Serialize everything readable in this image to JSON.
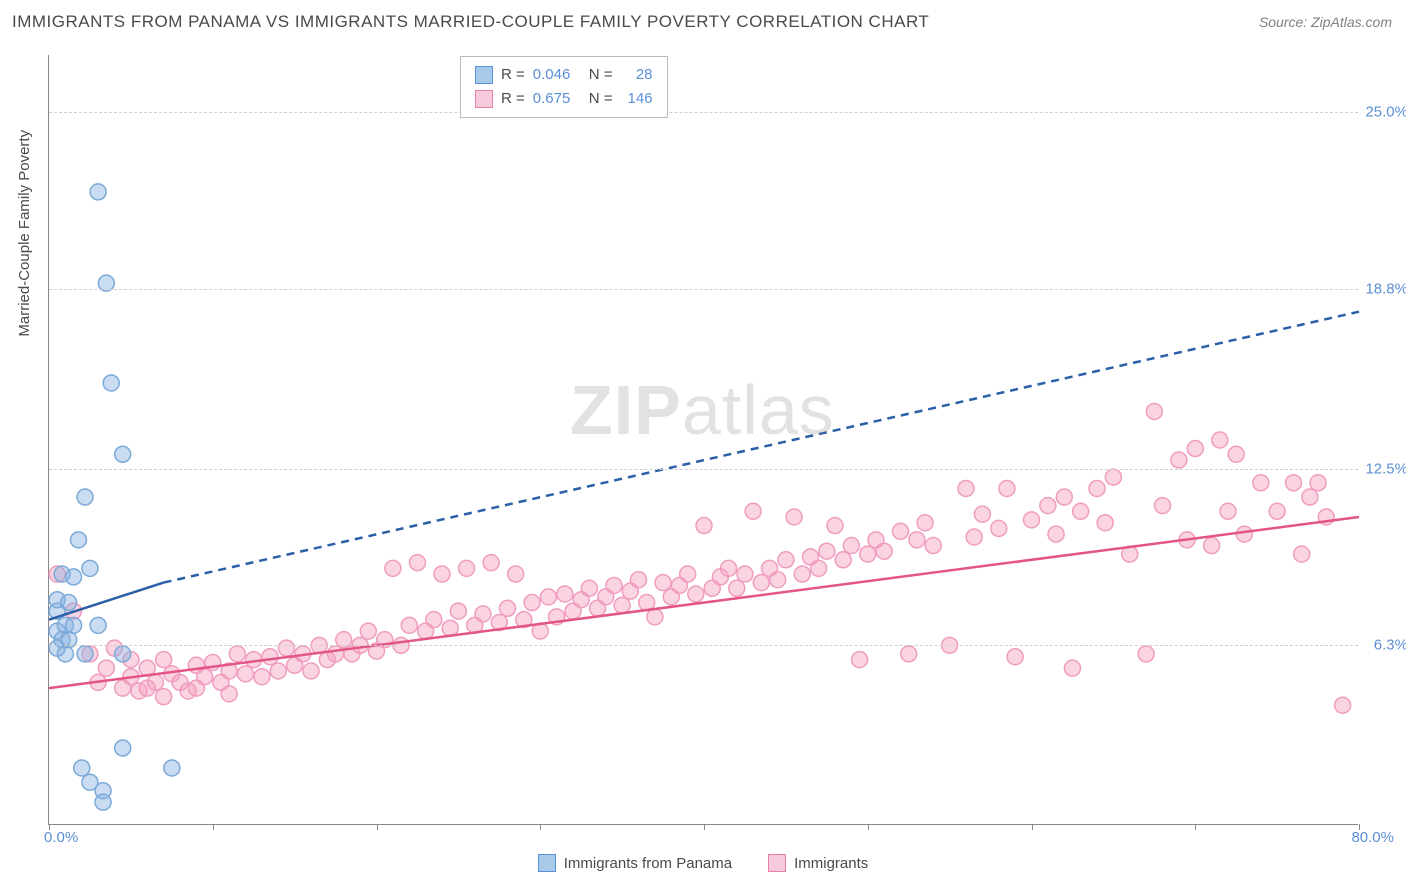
{
  "title": "IMMIGRANTS FROM PANAMA VS IMMIGRANTS MARRIED-COUPLE FAMILY POVERTY CORRELATION CHART",
  "source": "Source: ZipAtlas.com",
  "ylabel": "Married-Couple Family Poverty",
  "watermark_bold": "ZIP",
  "watermark_rest": "atlas",
  "chart": {
    "type": "scatter",
    "xlim": [
      0,
      80
    ],
    "ylim": [
      0,
      27
    ],
    "xlabel_min": "0.0%",
    "xlabel_max": "80.0%",
    "xtick_positions": [
      0,
      10,
      20,
      30,
      40,
      50,
      60,
      70,
      80
    ],
    "ytick_positions": [
      6.3,
      12.5,
      18.8,
      25.0
    ],
    "ytick_labels": [
      "6.3%",
      "12.5%",
      "18.8%",
      "25.0%"
    ],
    "grid_color": "#d0d0d0",
    "background_color": "#ffffff",
    "axis_color": "#888888",
    "tick_label_color": "#5b8fd6",
    "marker_radius": 8,
    "marker_stroke_width": 1.5,
    "series": [
      {
        "name": "Immigrants from Panama",
        "color_fill": "rgba(135,178,226,0.45)",
        "color_stroke": "#7ba9d8",
        "swatch_fill": "#a9c9ea",
        "swatch_border": "#5b8fd6",
        "R": "0.046",
        "N": "28",
        "trend_solid": {
          "x1": 0,
          "y1": 7.2,
          "x2": 7,
          "y2": 8.5
        },
        "trend_dashed": {
          "x1": 7,
          "y1": 8.5,
          "x2": 80,
          "y2": 18.0
        },
        "trend_color": "#2b5fa8",
        "points": [
          [
            0.5,
            7.5
          ],
          [
            0.5,
            6.8
          ],
          [
            0.5,
            6.2
          ],
          [
            0.5,
            7.9
          ],
          [
            0.8,
            6.5
          ],
          [
            0.8,
            8.8
          ],
          [
            1.0,
            6.0
          ],
          [
            1.0,
            7.0
          ],
          [
            1.2,
            6.5
          ],
          [
            1.2,
            7.8
          ],
          [
            1.5,
            7.0
          ],
          [
            1.5,
            8.7
          ],
          [
            1.8,
            10.0
          ],
          [
            2.2,
            6.0
          ],
          [
            2.2,
            11.5
          ],
          [
            2.5,
            9.0
          ],
          [
            3.0,
            22.2
          ],
          [
            3.0,
            7.0
          ],
          [
            3.5,
            19.0
          ],
          [
            3.8,
            15.5
          ],
          [
            4.5,
            6.0
          ],
          [
            4.5,
            13.0
          ],
          [
            2.0,
            2.0
          ],
          [
            2.5,
            1.5
          ],
          [
            3.3,
            1.2
          ],
          [
            3.3,
            0.8
          ],
          [
            4.5,
            2.7
          ],
          [
            7.5,
            2.0
          ]
        ]
      },
      {
        "name": "Immigrants",
        "color_fill": "rgba(244,160,188,0.45)",
        "color_stroke": "#f09cc0",
        "swatch_fill": "#f7c9dc",
        "swatch_border": "#e87fa8",
        "R": "0.675",
        "N": "146",
        "trend_solid": {
          "x1": 0,
          "y1": 4.8,
          "x2": 80,
          "y2": 10.8
        },
        "trend_dashed": null,
        "trend_color": "#e35587",
        "points": [
          [
            0.5,
            8.8
          ],
          [
            1.5,
            7.5
          ],
          [
            2.5,
            6.0
          ],
          [
            3.0,
            5.0
          ],
          [
            3.5,
            5.5
          ],
          [
            4.0,
            6.2
          ],
          [
            4.5,
            4.8
          ],
          [
            5.0,
            5.2
          ],
          [
            5.0,
            5.8
          ],
          [
            5.5,
            4.7
          ],
          [
            6.0,
            5.5
          ],
          [
            6.0,
            4.8
          ],
          [
            6.5,
            5.0
          ],
          [
            7.0,
            5.8
          ],
          [
            7.0,
            4.5
          ],
          [
            7.5,
            5.3
          ],
          [
            8.0,
            5.0
          ],
          [
            8.5,
            4.7
          ],
          [
            9.0,
            5.6
          ],
          [
            9.0,
            4.8
          ],
          [
            9.5,
            5.2
          ],
          [
            10.0,
            5.7
          ],
          [
            10.5,
            5.0
          ],
          [
            11.0,
            5.4
          ],
          [
            11.0,
            4.6
          ],
          [
            11.5,
            6.0
          ],
          [
            12.0,
            5.3
          ],
          [
            12.5,
            5.8
          ],
          [
            13.0,
            5.2
          ],
          [
            13.5,
            5.9
          ],
          [
            14.0,
            5.4
          ],
          [
            14.5,
            6.2
          ],
          [
            15.0,
            5.6
          ],
          [
            15.5,
            6.0
          ],
          [
            16.0,
            5.4
          ],
          [
            16.5,
            6.3
          ],
          [
            17.0,
            5.8
          ],
          [
            17.5,
            6.0
          ],
          [
            18.0,
            6.5
          ],
          [
            18.5,
            6.0
          ],
          [
            19.0,
            6.3
          ],
          [
            19.5,
            6.8
          ],
          [
            20.0,
            6.1
          ],
          [
            20.5,
            6.5
          ],
          [
            21.0,
            9.0
          ],
          [
            21.5,
            6.3
          ],
          [
            22.0,
            7.0
          ],
          [
            22.5,
            9.2
          ],
          [
            23.0,
            6.8
          ],
          [
            23.5,
            7.2
          ],
          [
            24.0,
            8.8
          ],
          [
            24.5,
            6.9
          ],
          [
            25.0,
            7.5
          ],
          [
            25.5,
            9.0
          ],
          [
            26.0,
            7.0
          ],
          [
            26.5,
            7.4
          ],
          [
            27.0,
            9.2
          ],
          [
            27.5,
            7.1
          ],
          [
            28.0,
            7.6
          ],
          [
            28.5,
            8.8
          ],
          [
            29.0,
            7.2
          ],
          [
            29.5,
            7.8
          ],
          [
            30.0,
            6.8
          ],
          [
            30.5,
            8.0
          ],
          [
            31.0,
            7.3
          ],
          [
            31.5,
            8.1
          ],
          [
            32.0,
            7.5
          ],
          [
            32.5,
            7.9
          ],
          [
            33.0,
            8.3
          ],
          [
            33.5,
            7.6
          ],
          [
            34.0,
            8.0
          ],
          [
            34.5,
            8.4
          ],
          [
            35.0,
            7.7
          ],
          [
            35.5,
            8.2
          ],
          [
            36.0,
            8.6
          ],
          [
            36.5,
            7.8
          ],
          [
            37.0,
            7.3
          ],
          [
            37.5,
            8.5
          ],
          [
            38.0,
            8.0
          ],
          [
            38.5,
            8.4
          ],
          [
            39.0,
            8.8
          ],
          [
            39.5,
            8.1
          ],
          [
            40.0,
            10.5
          ],
          [
            40.5,
            8.3
          ],
          [
            41.0,
            8.7
          ],
          [
            41.5,
            9.0
          ],
          [
            42.0,
            8.3
          ],
          [
            42.5,
            8.8
          ],
          [
            43.0,
            11.0
          ],
          [
            43.5,
            8.5
          ],
          [
            44.0,
            9.0
          ],
          [
            44.5,
            8.6
          ],
          [
            45.0,
            9.3
          ],
          [
            45.5,
            10.8
          ],
          [
            46.0,
            8.8
          ],
          [
            46.5,
            9.4
          ],
          [
            47.0,
            9.0
          ],
          [
            47.5,
            9.6
          ],
          [
            48.0,
            10.5
          ],
          [
            48.5,
            9.3
          ],
          [
            49.0,
            9.8
          ],
          [
            49.5,
            5.8
          ],
          [
            50.0,
            9.5
          ],
          [
            50.5,
            10.0
          ],
          [
            51.0,
            9.6
          ],
          [
            52.0,
            10.3
          ],
          [
            52.5,
            6.0
          ],
          [
            53.0,
            10.0
          ],
          [
            53.5,
            10.6
          ],
          [
            54.0,
            9.8
          ],
          [
            55.0,
            6.3
          ],
          [
            56.0,
            11.8
          ],
          [
            56.5,
            10.1
          ],
          [
            57.0,
            10.9
          ],
          [
            58.0,
            10.4
          ],
          [
            58.5,
            11.8
          ],
          [
            59.0,
            5.9
          ],
          [
            60.0,
            10.7
          ],
          [
            61.0,
            11.2
          ],
          [
            61.5,
            10.2
          ],
          [
            62.0,
            11.5
          ],
          [
            62.5,
            5.5
          ],
          [
            63.0,
            11.0
          ],
          [
            64.0,
            11.8
          ],
          [
            64.5,
            10.6
          ],
          [
            65.0,
            12.2
          ],
          [
            66.0,
            9.5
          ],
          [
            67.0,
            6.0
          ],
          [
            67.5,
            14.5
          ],
          [
            68.0,
            11.2
          ],
          [
            69.0,
            12.8
          ],
          [
            69.5,
            10.0
          ],
          [
            70.0,
            13.2
          ],
          [
            71.0,
            9.8
          ],
          [
            71.5,
            13.5
          ],
          [
            72.0,
            11.0
          ],
          [
            72.5,
            13.0
          ],
          [
            73.0,
            10.2
          ],
          [
            74.0,
            12.0
          ],
          [
            75.0,
            11.0
          ],
          [
            76.0,
            12.0
          ],
          [
            76.5,
            9.5
          ],
          [
            77.0,
            11.5
          ],
          [
            77.5,
            12.0
          ],
          [
            78.0,
            10.8
          ],
          [
            79.0,
            4.2
          ]
        ]
      }
    ]
  },
  "legend_top": {
    "r_label": "R =",
    "n_label": "N ="
  },
  "legend_bottom": [
    {
      "label": "Immigrants from Panama"
    },
    {
      "label": "Immigrants"
    }
  ]
}
